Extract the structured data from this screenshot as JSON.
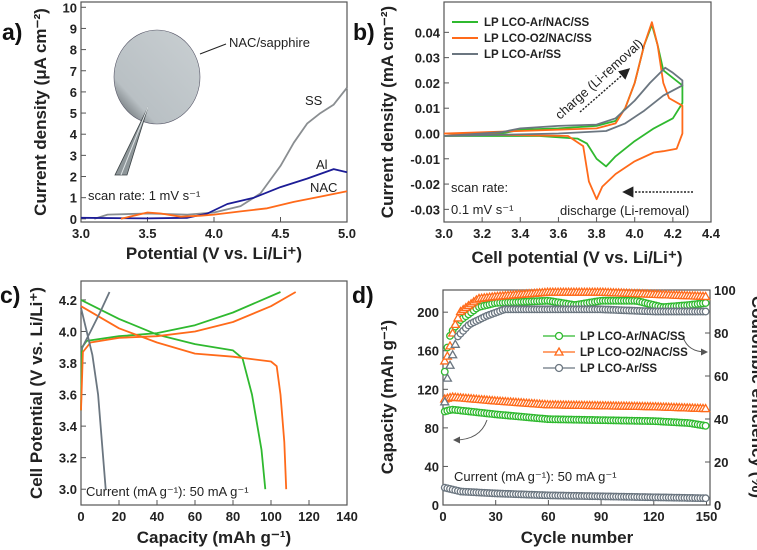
{
  "chart_data": [
    {
      "panel": "a)",
      "type": "line",
      "xlabel": "Potential (V vs. Li/Li⁺)",
      "ylabel": "Current density (μA cm⁻²)",
      "xlim": [
        3.0,
        5.0
      ],
      "ylim": [
        -0.15,
        10.25
      ],
      "xticks": [
        "3.0",
        "3.5",
        "4.0",
        "4.5",
        "5.0"
      ],
      "xtick_values": [
        3.0,
        3.5,
        4.0,
        4.5,
        5.0
      ],
      "yticks": [
        "0",
        "1",
        "2",
        "3",
        "4",
        "5",
        "6",
        "7",
        "8",
        "9",
        "10"
      ],
      "ytick_values": [
        0,
        1,
        2,
        3,
        4,
        5,
        6,
        7,
        8,
        9,
        10
      ],
      "annotations": {
        "inset": "NAC/sapphire",
        "scan": "scan rate: 1 mV s⁻¹"
      },
      "series": [
        {
          "name": "SS",
          "color": "#8a8e91",
          "points": [
            [
              3.1,
              0
            ],
            [
              3.2,
              0.2
            ],
            [
              3.5,
              0.25
            ],
            [
              3.8,
              0.2
            ],
            [
              4.0,
              0.3
            ],
            [
              4.2,
              0.6
            ],
            [
              4.35,
              1.2
            ],
            [
              4.5,
              2.5
            ],
            [
              4.6,
              3.6
            ],
            [
              4.7,
              4.5
            ],
            [
              4.8,
              5.0
            ],
            [
              4.9,
              5.4
            ],
            [
              5.0,
              6.2
            ]
          ]
        },
        {
          "name": "Al",
          "color": "#1c1c96",
          "points": [
            [
              3.0,
              0.05
            ],
            [
              3.5,
              0.02
            ],
            [
              3.8,
              0.05
            ],
            [
              3.95,
              0.25
            ],
            [
              4.1,
              0.7
            ],
            [
              4.3,
              1.0
            ],
            [
              4.5,
              1.5
            ],
            [
              4.7,
              1.9
            ],
            [
              4.9,
              2.35
            ],
            [
              5.0,
              2.2
            ]
          ]
        },
        {
          "name": "NAC",
          "color": "#ff6a1a",
          "points": [
            [
              3.3,
              0
            ],
            [
              3.5,
              0.3
            ],
            [
              3.6,
              0.25
            ],
            [
              3.75,
              0.1
            ],
            [
              3.9,
              0.15
            ],
            [
              4.0,
              0.2
            ],
            [
              4.2,
              0.35
            ],
            [
              4.4,
              0.5
            ],
            [
              4.6,
              0.8
            ],
            [
              4.8,
              1.05
            ],
            [
              5.0,
              1.3
            ]
          ]
        }
      ]
    },
    {
      "panel": "b)",
      "type": "line",
      "xlabel": "Cell potential (V vs. Li/Li⁺)",
      "ylabel": "Current density (mA cm⁻²)",
      "xlim": [
        3.0,
        4.4
      ],
      "ylim": [
        -0.035,
        0.052
      ],
      "xticks": [
        "3.0",
        "3.2",
        "3.4",
        "3.6",
        "3.8",
        "4.0",
        "4.2",
        "4.4"
      ],
      "xtick_values": [
        3.0,
        3.2,
        3.4,
        3.6,
        3.8,
        4.0,
        4.2,
        4.4
      ],
      "yticks": [
        "-0.03",
        "-0.02",
        "-0.01",
        "0.00",
        "0.01",
        "0.02",
        "0.03",
        "0.04"
      ],
      "ytick_values": [
        -0.03,
        -0.02,
        -0.01,
        0,
        0.01,
        0.02,
        0.03,
        0.04
      ],
      "legend_position": "top-left",
      "annotations": {
        "charge": "charge (Li-removal)",
        "discharge": "discharge (Li-removal)",
        "scan1": "scan rate:",
        "scan2": "0.1 mV s⁻¹"
      },
      "series": [
        {
          "name": "LP LCO-Ar/NAC/SS",
          "color": "#2fb92f",
          "points": [
            [
              3.0,
              -0.001
            ],
            [
              3.3,
              0.0
            ],
            [
              3.4,
              0.0015
            ],
            [
              3.6,
              0.002
            ],
            [
              3.8,
              0.003
            ],
            [
              3.9,
              0.005
            ],
            [
              3.95,
              0.01
            ],
            [
              4.0,
              0.02
            ],
            [
              4.05,
              0.035
            ],
            [
              4.09,
              0.043
            ],
            [
              4.12,
              0.035
            ],
            [
              4.15,
              0.025
            ],
            [
              4.2,
              0.022
            ],
            [
              4.25,
              0.019
            ],
            [
              4.25,
              0.012
            ],
            [
              4.2,
              0.006
            ],
            [
              4.1,
              0.002
            ],
            [
              4.0,
              -0.003
            ],
            [
              3.9,
              -0.009
            ],
            [
              3.85,
              -0.013
            ],
            [
              3.8,
              -0.01
            ],
            [
              3.75,
              -0.004
            ],
            [
              3.7,
              -0.002
            ],
            [
              3.5,
              -0.001
            ],
            [
              3.0,
              -0.001
            ]
          ]
        },
        {
          "name": "LP LCO-O2/NAC/SS",
          "color": "#ff6a1a",
          "points": [
            [
              3.0,
              0
            ],
            [
              3.4,
              0.001
            ],
            [
              3.8,
              0.002
            ],
            [
              3.9,
              0.004
            ],
            [
              3.95,
              0.01
            ],
            [
              4.0,
              0.02
            ],
            [
              4.05,
              0.035
            ],
            [
              4.09,
              0.044
            ],
            [
              4.12,
              0.035
            ],
            [
              4.15,
              0.02
            ],
            [
              4.18,
              0.014
            ],
            [
              4.25,
              0.011
            ],
            [
              4.25,
              0.0
            ],
            [
              4.22,
              -0.006
            ],
            [
              4.15,
              -0.007
            ],
            [
              4.1,
              -0.0075
            ],
            [
              4.0,
              -0.011
            ],
            [
              3.9,
              -0.016
            ],
            [
              3.83,
              -0.021
            ],
            [
              3.8,
              -0.026
            ],
            [
              3.76,
              -0.019
            ],
            [
              3.73,
              -0.005
            ],
            [
              3.65,
              -0.001
            ],
            [
              3.3,
              -0.0005
            ],
            [
              3.0,
              0
            ]
          ]
        },
        {
          "name": "LP LCO-Ar/SS",
          "color": "#6b7680",
          "points": [
            [
              3.0,
              -0.001
            ],
            [
              3.3,
              0.0005
            ],
            [
              3.4,
              0.002
            ],
            [
              3.6,
              0.003
            ],
            [
              3.8,
              0.0035
            ],
            [
              3.9,
              0.006
            ],
            [
              4.0,
              0.013
            ],
            [
              4.08,
              0.02
            ],
            [
              4.16,
              0.026
            ],
            [
              4.2,
              0.024
            ],
            [
              4.25,
              0.021
            ],
            [
              4.25,
              0.019
            ],
            [
              4.15,
              0.015
            ],
            [
              4.05,
              0.009
            ],
            [
              3.95,
              0.004
            ],
            [
              3.85,
              0.001
            ],
            [
              3.6,
              0.0
            ],
            [
              3.0,
              -0.001
            ]
          ]
        }
      ]
    },
    {
      "panel": "c)",
      "type": "line",
      "xlabel": "Capacity (mAh g⁻¹)",
      "ylabel": "Cell Potential (V vs. Li/Li⁺)",
      "xlim": [
        0,
        140
      ],
      "ylim": [
        2.9,
        4.32
      ],
      "xticks": [
        "0",
        "20",
        "40",
        "60",
        "80",
        "100",
        "120",
        "140"
      ],
      "xtick_values": [
        0,
        20,
        40,
        60,
        80,
        100,
        120,
        140
      ],
      "yticks": [
        "3.0",
        "3.2",
        "3.4",
        "3.6",
        "3.8",
        "4.0",
        "4.2"
      ],
      "ytick_values": [
        3.0,
        3.2,
        3.4,
        3.6,
        3.8,
        4.0,
        4.2
      ],
      "annotations": {
        "current": "Current (mA g⁻¹): 50 mA g⁻¹"
      },
      "series": [
        {
          "color": "#2fb92f",
          "points": [
            [
              0,
              3.5
            ],
            [
              0.5,
              3.9
            ],
            [
              3,
              3.94
            ],
            [
              20,
              3.97
            ],
            [
              40,
              3.99
            ],
            [
              60,
              4.04
            ],
            [
              80,
              4.12
            ],
            [
              105,
              4.25
            ]
          ]
        },
        {
          "color": "#2fb92f",
          "points": [
            [
              0,
              4.2
            ],
            [
              20,
              4.08
            ],
            [
              40,
              3.98
            ],
            [
              60,
              3.92
            ],
            [
              80,
              3.88
            ],
            [
              85,
              3.83
            ],
            [
              90,
              3.6
            ],
            [
              95,
              3.25
            ],
            [
              97,
              3.0
            ]
          ]
        },
        {
          "color": "#ff6a1a",
          "points": [
            [
              0,
              3.5
            ],
            [
              1,
              3.87
            ],
            [
              5,
              3.93
            ],
            [
              20,
              3.96
            ],
            [
              40,
              3.97
            ],
            [
              60,
              4.0
            ],
            [
              80,
              4.06
            ],
            [
              100,
              4.16
            ],
            [
              113,
              4.25
            ]
          ]
        },
        {
          "color": "#ff6a1a",
          "points": [
            [
              0,
              4.16
            ],
            [
              20,
              4.02
            ],
            [
              40,
              3.93
            ],
            [
              60,
              3.86
            ],
            [
              80,
              3.84
            ],
            [
              100,
              3.81
            ],
            [
              103,
              3.78
            ],
            [
              105,
              3.6
            ],
            [
              107,
              3.3
            ],
            [
              108,
              3.0
            ]
          ]
        },
        {
          "color": "#6b7680",
          "points": [
            [
              0,
              3.88
            ],
            [
              2,
              3.93
            ],
            [
              5,
              4.0
            ],
            [
              10,
              4.12
            ],
            [
              15,
              4.25
            ]
          ]
        },
        {
          "color": "#6b7680",
          "points": [
            [
              0,
              4.15
            ],
            [
              3,
              4.0
            ],
            [
              6,
              3.85
            ],
            [
              9,
              3.6
            ],
            [
              11,
              3.3
            ],
            [
              13,
              3.0
            ]
          ]
        }
      ]
    },
    {
      "panel": "d)",
      "type": "scatter",
      "xlabel": "Cycle number",
      "ylabel": "Capacity (mAh g⁻¹)",
      "y2label": "Coulombic efficiency (%)",
      "xlim": [
        0,
        152
      ],
      "ylim": [
        0,
        223
      ],
      "y2lim": [
        0,
        100
      ],
      "xticks": [
        "0",
        "30",
        "60",
        "90",
        "120",
        "150"
      ],
      "xtick_values": [
        0,
        30,
        60,
        90,
        120,
        150
      ],
      "yticks": [
        "0",
        "40",
        "80",
        "120",
        "160",
        "200"
      ],
      "ytick_values": [
        0,
        40,
        80,
        120,
        160,
        200
      ],
      "y2ticks": [
        "0",
        "20",
        "40",
        "60",
        "80",
        "100"
      ],
      "y2tick_values": [
        0,
        20,
        40,
        60,
        80,
        100
      ],
      "legend_position": "center-right",
      "annotations": {
        "current": "Current (mA g⁻¹): 50 mA g⁻¹"
      },
      "series": [
        {
          "name": "LP LCO-Ar/NAC/SS",
          "color": "#2fb92f",
          "marker": "circle",
          "capacity": [
            [
              1,
              97
            ],
            [
              5,
              99
            ],
            [
              15,
              97
            ],
            [
              30,
              94
            ],
            [
              60,
              89
            ],
            [
              90,
              88
            ],
            [
              120,
              87
            ],
            [
              140,
              85
            ],
            [
              150,
              82
            ]
          ],
          "efficiency": [
            [
              1,
              62
            ],
            [
              3,
              77
            ],
            [
              6,
              82
            ],
            [
              10,
              86
            ],
            [
              20,
              92
            ],
            [
              30,
              94
            ],
            [
              60,
              95
            ],
            [
              75,
              93
            ],
            [
              90,
              95
            ],
            [
              110,
              95
            ],
            [
              125,
              92
            ],
            [
              140,
              93
            ],
            [
              150,
              94
            ]
          ]
        },
        {
          "name": "LP LCO-O2/NAC/SS",
          "color": "#ff6a1a",
          "marker": "triangle",
          "capacity": [
            [
              1,
              110
            ],
            [
              5,
              112
            ],
            [
              30,
              108
            ],
            [
              60,
              104
            ],
            [
              90,
              103
            ],
            [
              120,
              102
            ],
            [
              150,
              100
            ]
          ],
          "efficiency": [
            [
              1,
              67
            ],
            [
              3,
              70
            ],
            [
              6,
              82
            ],
            [
              10,
              90
            ],
            [
              20,
              96
            ],
            [
              30,
              97
            ],
            [
              60,
              99
            ],
            [
              90,
              99
            ],
            [
              120,
              98
            ],
            [
              150,
              97
            ]
          ]
        },
        {
          "name": "LP LCO-Ar/SS",
          "color": "#6b7680",
          "marker": "circle-line",
          "capacity": [
            [
              1,
              18
            ],
            [
              10,
              14
            ],
            [
              30,
              12
            ],
            [
              60,
              10
            ],
            [
              90,
              9
            ],
            [
              120,
              8
            ],
            [
              150,
              7
            ]
          ],
          "efficiency": [
            [
              1,
              48
            ],
            [
              2,
              57
            ],
            [
              4,
              65
            ],
            [
              8,
              78
            ],
            [
              15,
              84
            ],
            [
              25,
              88
            ],
            [
              35,
              91
            ],
            [
              60,
              91
            ],
            [
              90,
              91
            ],
            [
              120,
              90
            ],
            [
              150,
              90
            ]
          ]
        }
      ]
    }
  ]
}
